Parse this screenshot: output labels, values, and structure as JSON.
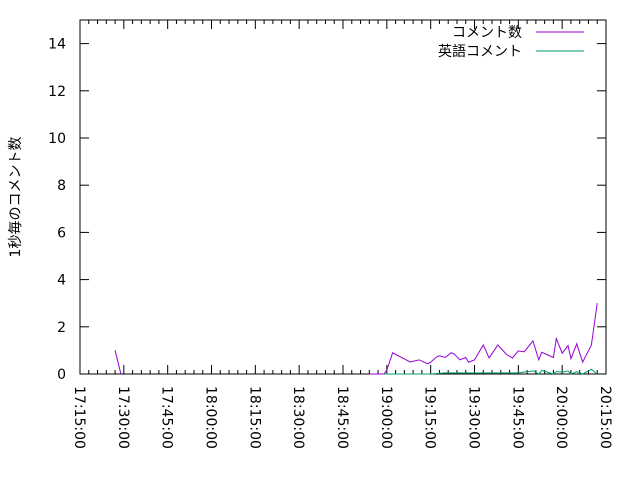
{
  "chart_data": {
    "type": "line",
    "title": "",
    "xlabel": "",
    "ylabel": "1秒毎のコメント数",
    "xlim": [
      "17:15:00",
      "20:15:00"
    ],
    "ylim": [
      0,
      15
    ],
    "xticks": [
      "17:15:00",
      "17:30:00",
      "17:45:00",
      "18:00:00",
      "18:15:00",
      "18:30:00",
      "18:45:00",
      "19:00:00",
      "19:15:00",
      "19:30:00",
      "19:45:00",
      "20:00:00",
      "20:15:00"
    ],
    "yticks": [
      "0",
      "2",
      "4",
      "6",
      "8",
      "10",
      "12",
      "14"
    ],
    "grid": false,
    "legend_position": "top-right",
    "series": [
      {
        "name": "コメント数",
        "color": "#9400d3",
        "x": [
          "17:27",
          "17:29",
          "18:54",
          "18:59",
          "19:00",
          "19:02",
          "19:05",
          "19:08",
          "19:11",
          "19:14",
          "19:15",
          "19:17",
          "19:18",
          "19:20",
          "19:22",
          "19:23",
          "19:25",
          "19:27",
          "19:28",
          "19:30",
          "19:33",
          "19:35",
          "19:38",
          "19:41",
          "19:43",
          "19:45",
          "19:47",
          "19:50",
          "19:52",
          "19:53",
          "19:57",
          "19:58",
          "20:00",
          "20:02",
          "20:03",
          "20:05",
          "20:07",
          "20:10",
          "20:12"
        ],
        "y": [
          1.0,
          0,
          0,
          0,
          0.17,
          0.9,
          0.7,
          0.51,
          0.6,
          0.43,
          0.5,
          0.72,
          0.77,
          0.7,
          0.9,
          0.85,
          0.6,
          0.7,
          0.5,
          0.6,
          1.23,
          0.68,
          1.23,
          0.82,
          0.68,
          0.98,
          0.94,
          1.4,
          0.6,
          0.92,
          0.7,
          1.5,
          0.88,
          1.2,
          0.65,
          1.28,
          0.5,
          1.23,
          3.0
        ]
      },
      {
        "name": "英語コメント",
        "color": "#009e73",
        "x": [
          "18:59",
          "19:15",
          "19:20",
          "19:30",
          "19:45",
          "19:50",
          "19:52",
          "19:53",
          "19:57",
          "19:58",
          "20:00",
          "20:02",
          "20:03",
          "20:05",
          "20:07",
          "20:10",
          "20:12"
        ],
        "y": [
          0,
          0,
          0.05,
          0.04,
          0.05,
          0.13,
          0,
          0.15,
          0,
          0.1,
          0.08,
          0.13,
          0,
          0.1,
          0,
          0.2,
          0
        ]
      }
    ]
  }
}
